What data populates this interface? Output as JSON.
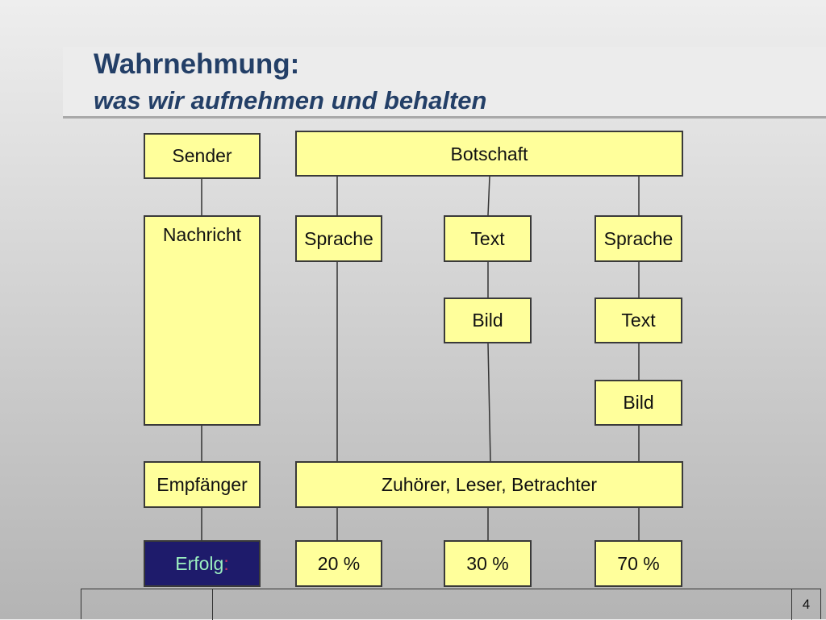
{
  "slide": {
    "title": "Wahrnehmung:",
    "subtitle": "was wir aufnehmen und behalten",
    "page_number": "4"
  },
  "diagram": {
    "sender": "Sender",
    "botschaft": "Botschaft",
    "nachricht": "Nachricht",
    "column1": {
      "sprache": "Sprache"
    },
    "column2": {
      "text": "Text",
      "bild": "Bild"
    },
    "column3": {
      "sprache": "Sprache",
      "text": "Text",
      "bild": "Bild"
    },
    "empfaenger": "Empfänger",
    "audience": "Zuhörer, Leser, Betrachter",
    "erfolg_word": "Erfolg",
    "erfolg_colon": ":",
    "results": [
      "20 %",
      "30 %",
      "70 %"
    ]
  },
  "colors": {
    "box_fill": "#ffff9b",
    "title_text": "#233f67",
    "erfolg_fill": "#1e1b6b",
    "erfolg_text": "#9cf0c0",
    "erfolg_colon": "#cc3366"
  }
}
